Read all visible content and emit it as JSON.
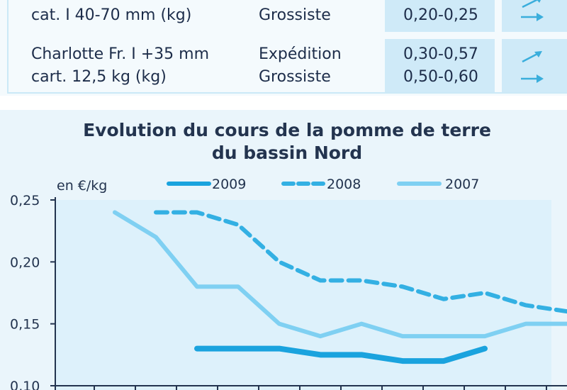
{
  "table": {
    "rows": [
      {
        "product_line1": "",
        "product_line2": "cat. I 40-70 mm (kg)",
        "stage_line1": "",
        "stage_line2": "Grossiste",
        "price_line1": "",
        "price_line2": "0,20-0,25",
        "trend1": "up",
        "trend2": "stable"
      },
      {
        "product_line1": "Charlotte Fr. I +35 mm",
        "product_line2": "cart. 12,5 kg (kg)",
        "stage_line1": "Expédition",
        "stage_line2": "Grossiste",
        "price_line1": "0,30-0,57",
        "price_line2": "0,50-0,60",
        "trend1": "up",
        "trend2": "stable"
      }
    ],
    "colors": {
      "band": "#cfeaf8",
      "arrow": "#3aaedc",
      "text": "#1d2d4a"
    }
  },
  "chart_data": {
    "type": "line",
    "title_line1": "Evolution du cours de la pomme de terre",
    "title_line2": "du bassin Nord",
    "ylabel": "en €/kg",
    "ylim": [
      0.1,
      0.25
    ],
    "yticks": [
      "0,25",
      "0,20",
      "0,15",
      "0,10"
    ],
    "ytick_values": [
      0.25,
      0.2,
      0.15,
      0.1
    ],
    "x_count": 13,
    "series": [
      {
        "name": "2009",
        "style": "solid-thick",
        "color": "#1aa3de",
        "x": [
          3,
          4,
          5,
          6,
          7,
          8,
          9,
          10
        ],
        "values": [
          0.13,
          0.13,
          0.13,
          0.125,
          0.125,
          0.12,
          0.12,
          0.13
        ]
      },
      {
        "name": "2008",
        "style": "dashed",
        "color": "#33b0e3",
        "x": [
          2,
          3,
          4,
          5,
          6,
          7,
          8,
          9,
          10,
          11,
          12
        ],
        "values": [
          0.24,
          0.24,
          0.23,
          0.2,
          0.185,
          0.185,
          0.18,
          0.17,
          0.175,
          0.165,
          0.16
        ]
      },
      {
        "name": "2007",
        "style": "solid",
        "color": "#7fd0f2",
        "x": [
          1,
          2,
          3,
          4,
          5,
          6,
          7,
          8,
          9,
          10,
          11,
          12
        ],
        "values": [
          0.24,
          0.22,
          0.18,
          0.18,
          0.15,
          0.14,
          0.15,
          0.14,
          0.14,
          0.14,
          0.15,
          0.15
        ]
      }
    ],
    "legend_placement": "top",
    "grid": false,
    "plot_bg": "#ddf1fb",
    "axis_color": "#23344f"
  }
}
